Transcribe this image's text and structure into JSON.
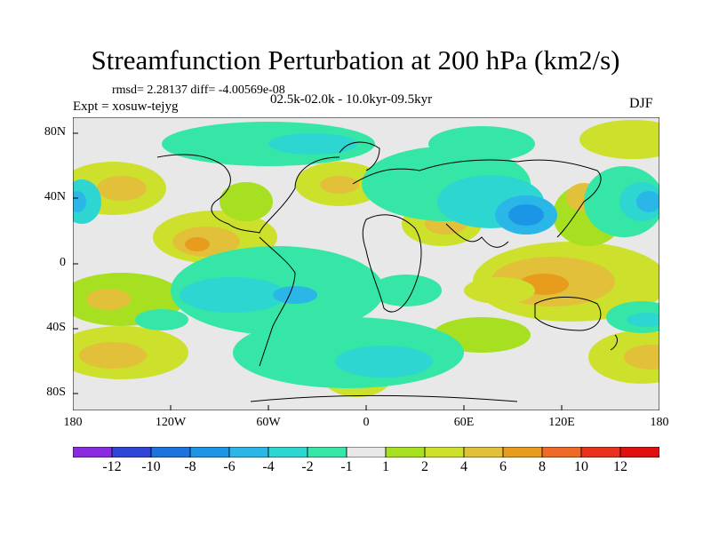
{
  "title": "Streamfunction Perturbation at 200 hPa (km2/s)",
  "stats_text": "rmsd= 2.28137 diff= -4.00569e-08",
  "experiment_text": "Expt = xosuw-tejyg",
  "period_text": "02.5k-02.0k - 10.0kyr-09.5kyr",
  "season": "DJF",
  "lat_labels": [
    "80N",
    "40N",
    "0",
    "40S",
    "80S"
  ],
  "lon_labels": [
    "180",
    "120W",
    "60W",
    "0",
    "60E",
    "120E",
    "180"
  ],
  "colorbar": {
    "labels": [
      "-12",
      "-10",
      "-8",
      "-6",
      "-4",
      "-2",
      "-1",
      "1",
      "2",
      "4",
      "6",
      "8",
      "10",
      "12"
    ],
    "colors": [
      "#8a2be2",
      "#2f45d8",
      "#1e72df",
      "#1b96e6",
      "#2ab7e8",
      "#2dd6d0",
      "#35e6a6",
      "#e8e8e8",
      "#a6e020",
      "#cde12c",
      "#e2c03a",
      "#e89c1e",
      "#ef6a26",
      "#e8321e",
      "#e01010"
    ]
  }
}
